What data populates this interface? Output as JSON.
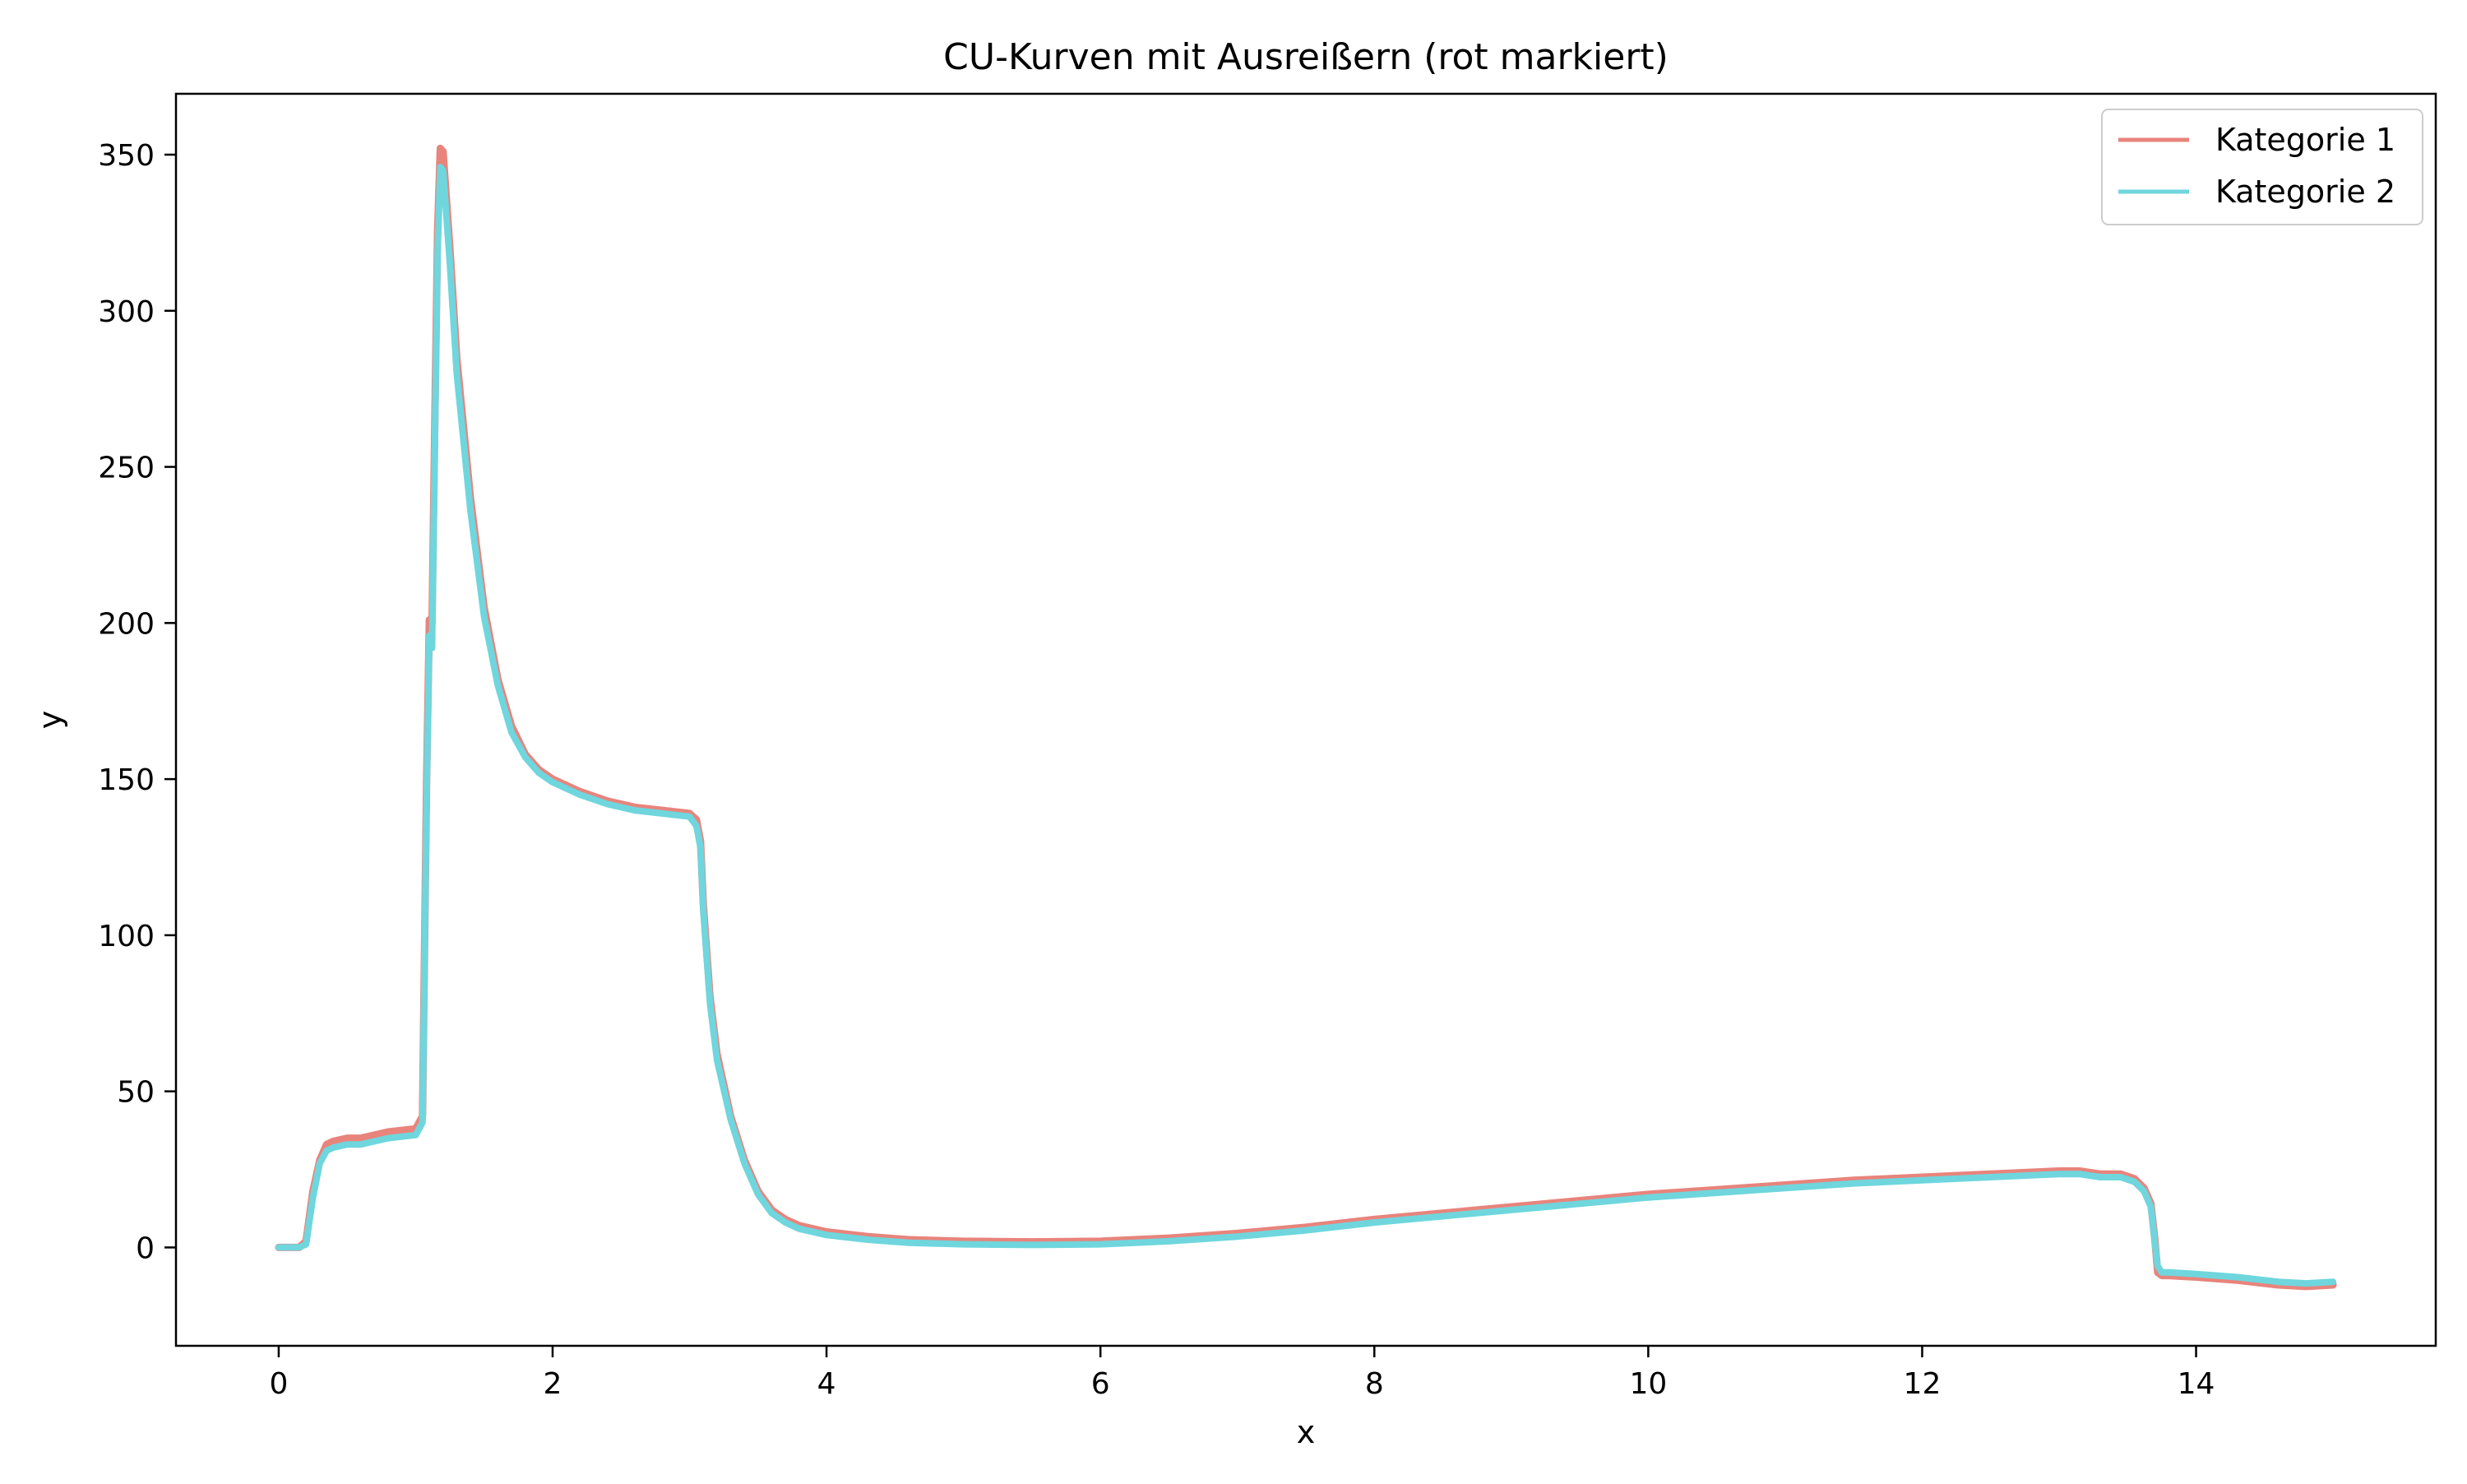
{
  "chart_data": {
    "type": "line",
    "title": "CU-Kurven mit Ausreißern (rot markiert)",
    "xlabel": "x",
    "ylabel": "y",
    "xlim": [
      -0.75,
      15.75
    ],
    "ylim": [
      -31.5,
      369.5
    ],
    "xticks": [
      0,
      2,
      4,
      6,
      8,
      10,
      12,
      14
    ],
    "yticks": [
      0,
      50,
      100,
      150,
      200,
      250,
      300,
      350
    ],
    "xtick_labels": [
      "0",
      "2",
      "4",
      "6",
      "8",
      "10",
      "12",
      "14"
    ],
    "ytick_labels": [
      "0",
      "50",
      "100",
      "150",
      "200",
      "250",
      "300",
      "350"
    ],
    "grid": false,
    "legend": "top-right",
    "colors": {
      "Kategorie 1": "#e8847c",
      "Kategorie 2": "#6fd6dd"
    },
    "series": [
      {
        "name": "Kategorie 1",
        "color": "#e8847c",
        "x": [
          0,
          0.15,
          0.2,
          0.25,
          0.3,
          0.35,
          0.4,
          0.5,
          0.6,
          0.7,
          0.8,
          0.9,
          1.0,
          1.05,
          1.08,
          1.1,
          1.12,
          1.14,
          1.16,
          1.18,
          1.2,
          1.25,
          1.3,
          1.4,
          1.5,
          1.6,
          1.7,
          1.8,
          1.9,
          2.0,
          2.2,
          2.4,
          2.6,
          2.8,
          3.0,
          3.05,
          3.08,
          3.1,
          3.15,
          3.2,
          3.3,
          3.4,
          3.5,
          3.6,
          3.7,
          3.8,
          4.0,
          4.3,
          4.6,
          5.0,
          5.5,
          6.0,
          6.5,
          7.0,
          7.5,
          8.0,
          8.5,
          9.0,
          9.5,
          10.0,
          10.5,
          11.0,
          11.5,
          12.0,
          12.5,
          13.0,
          13.15,
          13.3,
          13.45,
          13.55,
          13.62,
          13.67,
          13.7,
          13.72,
          13.75,
          13.8,
          14.0,
          14.3,
          14.6,
          14.8,
          15.0
        ],
        "y": [
          0,
          0,
          2,
          18,
          28,
          33,
          34,
          35,
          35,
          36,
          37,
          37.5,
          38,
          42,
          150,
          201,
          200,
          265,
          325,
          352,
          351,
          320,
          285,
          240,
          205,
          182,
          167,
          158,
          153,
          150,
          146,
          143,
          141,
          140,
          139,
          137,
          130,
          110,
          80,
          62,
          42,
          28,
          18,
          12,
          9,
          7,
          5,
          3.5,
          2.5,
          2,
          1.8,
          2,
          3,
          4.5,
          6.5,
          9,
          11,
          13,
          15,
          17,
          18.5,
          20,
          21.5,
          22.5,
          23.5,
          24.5,
          24.5,
          23.5,
          23.5,
          22,
          19,
          14,
          2,
          -8,
          -9,
          -9,
          -9.5,
          -10.5,
          -12,
          -12.5,
          -12
        ]
      },
      {
        "name": "Kategorie 2",
        "color": "#6fd6dd",
        "x": [
          0,
          0.15,
          0.2,
          0.25,
          0.3,
          0.35,
          0.4,
          0.5,
          0.6,
          0.7,
          0.8,
          0.9,
          1.0,
          1.05,
          1.08,
          1.1,
          1.12,
          1.14,
          1.16,
          1.18,
          1.2,
          1.25,
          1.3,
          1.4,
          1.5,
          1.6,
          1.7,
          1.8,
          1.9,
          2.0,
          2.2,
          2.4,
          2.6,
          2.8,
          3.0,
          3.05,
          3.08,
          3.1,
          3.15,
          3.2,
          3.3,
          3.4,
          3.5,
          3.6,
          3.7,
          3.8,
          4.0,
          4.3,
          4.6,
          5.0,
          5.5,
          6.0,
          6.5,
          7.0,
          7.5,
          8.0,
          8.5,
          9.0,
          9.5,
          10.0,
          10.5,
          11.0,
          11.5,
          12.0,
          12.5,
          13.0,
          13.15,
          13.3,
          13.45,
          13.55,
          13.62,
          13.67,
          13.7,
          13.72,
          13.75,
          13.8,
          14.0,
          14.3,
          14.6,
          14.8,
          15.0
        ],
        "y": [
          0,
          0,
          1,
          16,
          27,
          31,
          32,
          33,
          33,
          34,
          35,
          35.5,
          36,
          40,
          145,
          196,
          192,
          258,
          318,
          346,
          345,
          315,
          280,
          236,
          202,
          180,
          165,
          157,
          152,
          149,
          145,
          142,
          140,
          139,
          138,
          135,
          128,
          108,
          78,
          60,
          41,
          27,
          17,
          11,
          8,
          6,
          4,
          2.5,
          1.5,
          1,
          0.8,
          1,
          2,
          3.5,
          5.5,
          8,
          10,
          12,
          14,
          16,
          17.5,
          19,
          20.5,
          21.5,
          22.5,
          23.5,
          23.5,
          22.5,
          22.5,
          21,
          18,
          13,
          1,
          -6,
          -8,
          -8,
          -8.5,
          -9.5,
          -11,
          -11.5,
          -11
        ]
      }
    ]
  }
}
